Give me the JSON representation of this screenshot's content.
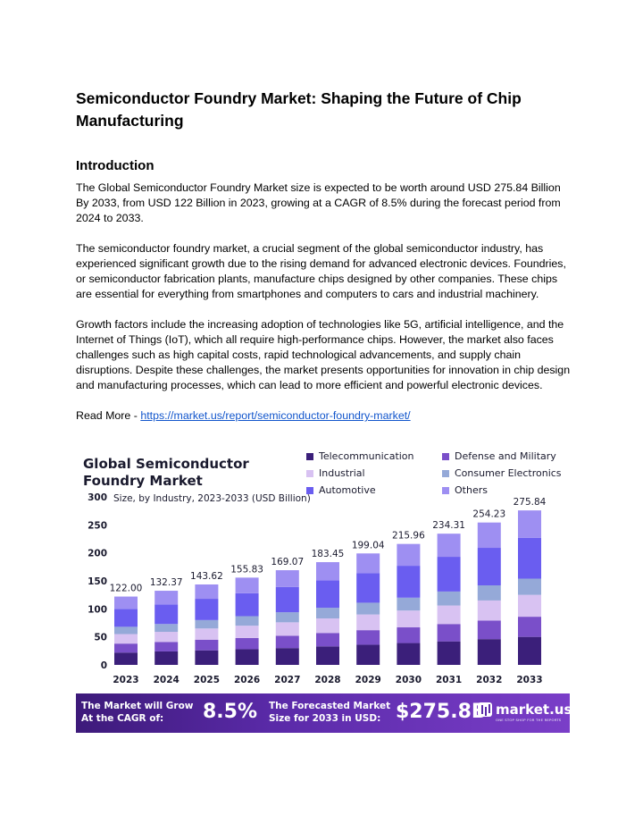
{
  "document": {
    "title": "Semiconductor Foundry Market: Shaping the Future of Chip Manufacturing",
    "section_heading": "Introduction",
    "paragraphs": [
      "The Global Semiconductor Foundry Market size is expected to be worth around USD 275.84 Billion By 2033, from USD 122 Billion in 2023, growing at a CAGR of 8.5% during the forecast period from 2024 to 2033.",
      "The semiconductor foundry market, a crucial segment of the global semiconductor industry, has experienced significant growth due to the rising demand for advanced electronic devices. Foundries, or semiconductor fabrication plants, manufacture chips designed by other companies. These chips are essential for everything from smartphones and computers to cars and industrial machinery.",
      "Growth factors include the increasing adoption of technologies like 5G, artificial intelligence, and the Internet of Things (IoT), which all require high-performance chips. However, the market also faces challenges such as high capital costs, rapid technological advancements, and supply chain disruptions. Despite these challenges, the market presents opportunities for innovation in chip design and manufacturing processes, which can lead to more efficient and powerful electronic devices."
    ],
    "read_more_prefix": "Read More - ",
    "read_more_link": "https://market.us/report/semiconductor-foundry-market/"
  },
  "infographic": {
    "title": "Global Semiconductor Foundry Market",
    "banner": {
      "cagr_label": "The Market will Grow At the CAGR of:",
      "cagr_value": "8.5%",
      "forecast_label": "The Forecasted Market Size for 2033 in USD:",
      "forecast_value": "$275.8B",
      "brand": "market.us",
      "brand_tagline": "ONE STOP SHOP FOR THE REPORTS"
    }
  },
  "chart_data": {
    "type": "bar",
    "stacked": true,
    "title": "",
    "subtitle": "Size, by Industry, 2023-2033 (USD Billion)",
    "xlabel": "",
    "ylabel": "",
    "ylim": [
      0,
      300
    ],
    "yticks": [
      0,
      50,
      100,
      150,
      200,
      250,
      300
    ],
    "grid": false,
    "legend_placement": "top-right",
    "categories": [
      "2023",
      "2024",
      "2025",
      "2026",
      "2027",
      "2028",
      "2029",
      "2030",
      "2031",
      "2032",
      "2033"
    ],
    "totals": [
      122.0,
      132.37,
      143.62,
      155.83,
      169.07,
      183.45,
      199.04,
      215.96,
      234.31,
      254.23,
      275.84
    ],
    "total_labels": [
      "122.00",
      "132.37",
      "143.62",
      "155.83",
      "169.07",
      "183.45",
      "199.04",
      "215.96",
      "234.31",
      "254.23",
      "275.84"
    ],
    "series": [
      {
        "name": "Telecommunication",
        "color": "#3b1f7a",
        "values": [
          22,
          24,
          26,
          28,
          30,
          33,
          36,
          39,
          42,
          46,
          50
        ]
      },
      {
        "name": "Defense and Military",
        "color": "#7a4fc9",
        "values": [
          16,
          17,
          19,
          20,
          22,
          24,
          26,
          28,
          31,
          33,
          36
        ]
      },
      {
        "name": "Industrial",
        "color": "#d8c2f2",
        "values": [
          17,
          18,
          20,
          22,
          24,
          26,
          28,
          30,
          33,
          36,
          39
        ]
      },
      {
        "name": "Consumer Electronics",
        "color": "#95a9d8",
        "values": [
          13,
          14,
          15,
          17,
          18,
          19,
          21,
          23,
          25,
          27,
          29
        ]
      },
      {
        "name": "Automotive",
        "color": "#6a5df0",
        "values": [
          32,
          35,
          38,
          41,
          45,
          49,
          53,
          57,
          62,
          67,
          73
        ]
      },
      {
        "name": "Others",
        "color": "#9e8ff2",
        "values": [
          22,
          24.37,
          25.62,
          27.83,
          30.07,
          32.45,
          35.04,
          38.96,
          41.31,
          45.23,
          48.84
        ]
      }
    ]
  }
}
